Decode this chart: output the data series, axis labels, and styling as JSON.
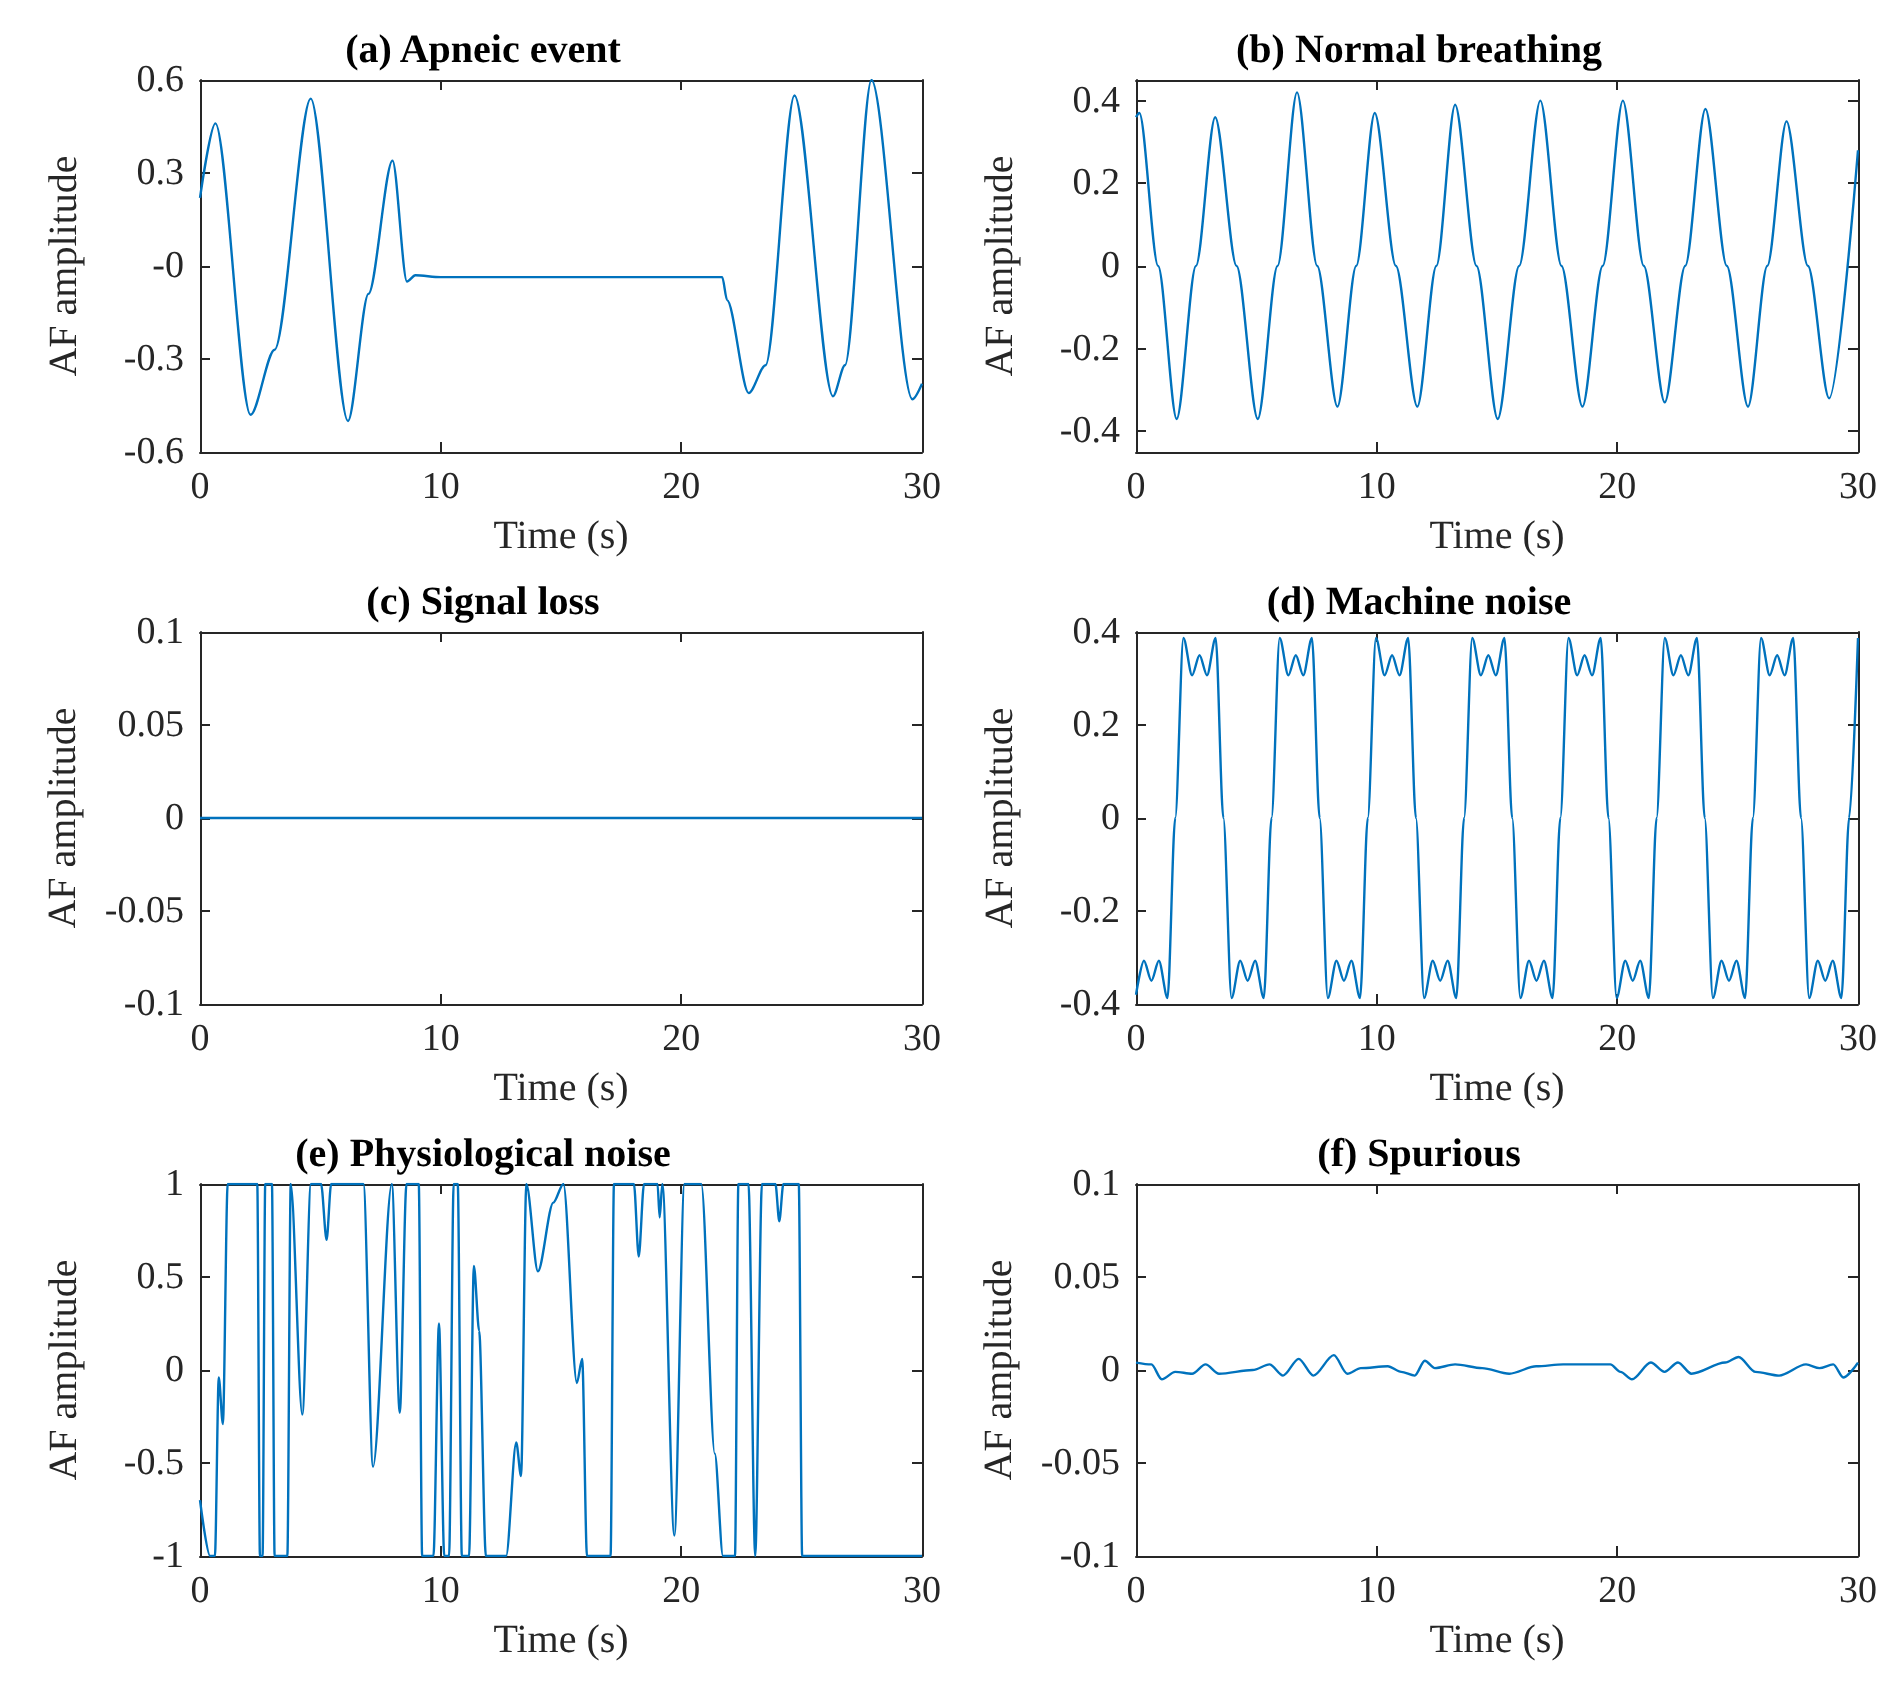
{
  "chart_data": [
    {
      "type": "line",
      "title": "(a) Apneic event",
      "xlabel": "Time (s)",
      "ylabel": "AF amplitude",
      "xlim": [
        0,
        30
      ],
      "xticks": [
        0,
        10,
        20,
        30
      ],
      "ylim": [
        -0.6,
        0.6
      ],
      "yticks": [
        -0.6,
        -0.3,
        {
          "value": 0,
          "label": "-0"
        },
        0.3,
        0.6
      ],
      "series": [
        {
          "color": "#0072bd",
          "x": [
            0,
            0.64,
            2.1,
            3.1,
            4.6,
            6.15,
            7.0,
            8.0,
            8.6,
            8.95,
            10,
            15,
            20,
            21.7,
            21.9,
            22.8,
            23.5,
            24.7,
            26.3,
            26.8,
            27.9,
            29.6,
            30
          ],
          "values": [
            0.22,
            0.46,
            -0.48,
            -0.27,
            0.54,
            -0.5,
            -0.09,
            0.34,
            -0.05,
            -0.03,
            -0.036,
            -0.036,
            -0.036,
            -0.036,
            -0.11,
            -0.41,
            -0.32,
            0.55,
            -0.42,
            -0.32,
            0.6,
            -0.43,
            -0.38
          ]
        }
      ]
    },
    {
      "type": "line",
      "title": "(b) Normal breathing",
      "xlabel": "Time (s)",
      "ylabel": "AF amplitude",
      "xlim": [
        0,
        30
      ],
      "xticks": [
        0,
        10,
        20,
        30
      ],
      "ylim": [
        -0.45,
        0.45
      ],
      "yticks": [
        -0.4,
        -0.2,
        0,
        0.2,
        0.4
      ],
      "series": [
        {
          "color": "#0072bd",
          "x": [
            0,
            0.14,
            0.92,
            1.69,
            2.49,
            3.29,
            4.18,
            5.06,
            5.88,
            6.69,
            7.53,
            8.37,
            9.15,
            9.92,
            10.8,
            11.69,
            12.48,
            13.26,
            14.15,
            15.03,
            15.92,
            16.8,
            17.68,
            18.55,
            19.39,
            20.23,
            21.1,
            21.97,
            22.82,
            23.66,
            24.55,
            25.43,
            26.23,
            27.03,
            27.92,
            28.8,
            30
          ],
          "values": [
            0.36,
            0.37,
            0,
            -0.37,
            0,
            0.36,
            0,
            -0.37,
            0,
            0.42,
            0,
            -0.34,
            0,
            0.37,
            0,
            -0.34,
            0,
            0.39,
            0,
            -0.37,
            0,
            0.4,
            0,
            -0.34,
            0,
            0.4,
            0,
            -0.33,
            0,
            0.38,
            0,
            -0.34,
            0,
            0.35,
            0,
            -0.32,
            0.28
          ]
        }
      ]
    },
    {
      "type": "line",
      "title": "(c) Signal loss",
      "xlabel": "Time (s)",
      "ylabel": "AF amplitude",
      "xlim": [
        0,
        30
      ],
      "xticks": [
        0,
        10,
        20,
        30
      ],
      "ylim": [
        -0.1,
        0.1
      ],
      "yticks": [
        -0.1,
        -0.05,
        0,
        0.05,
        0.1
      ],
      "series": [
        {
          "color": "#0072bd",
          "x": [
            0,
            30
          ],
          "values": [
            0,
            0
          ]
        }
      ]
    },
    {
      "type": "line",
      "title": "(d) Machine noise",
      "xlabel": "Time (s)",
      "ylabel": "AF amplitude",
      "xlim": [
        0,
        30
      ],
      "xticks": [
        0,
        10,
        20,
        30
      ],
      "ylim": [
        -0.4,
        0.4
      ],
      "yticks": [
        -0.4,
        -0.2,
        0,
        0.2,
        0.4
      ],
      "series": [
        {
          "color": "#0072bd",
          "x": [
            0,
            0.33,
            0.64,
            0.95,
            1.31,
            1.63,
            1.97,
            2.33,
            2.64,
            2.95,
            3.31,
            3.63,
            3.97,
            4.33,
            4.64,
            4.95,
            5.31,
            5.63,
            5.97,
            6.33,
            6.64,
            6.95,
            7.31,
            7.63,
            7.97,
            8.33,
            8.64,
            8.95,
            9.31,
            9.63,
            9.97,
            10.33,
            10.64,
            10.95,
            11.31,
            11.63,
            11.97,
            12.33,
            12.64,
            12.95,
            13.31,
            13.63,
            13.97,
            14.33,
            14.64,
            14.95,
            15.31,
            15.63,
            15.97,
            16.33,
            16.64,
            16.95,
            17.31,
            17.63,
            17.97,
            18.33,
            18.64,
            18.95,
            19.31,
            19.63,
            19.97,
            20.33,
            20.64,
            20.95,
            21.31,
            21.63,
            21.97,
            22.33,
            22.64,
            22.95,
            23.31,
            23.63,
            23.97,
            24.33,
            24.64,
            24.95,
            25.31,
            25.63,
            25.97,
            26.33,
            26.64,
            26.95,
            27.31,
            27.63,
            27.97,
            28.33,
            28.64,
            28.95,
            29.31,
            29.63,
            30
          ],
          "values": [
            -0.38,
            -0.307,
            -0.35,
            -0.307,
            -0.387,
            0,
            0.387,
            0.307,
            0.35,
            0.307,
            0.387,
            0,
            -0.387,
            -0.307,
            -0.35,
            -0.307,
            -0.387,
            0,
            0.387,
            0.307,
            0.35,
            0.307,
            0.387,
            0,
            -0.387,
            -0.307,
            -0.35,
            -0.307,
            -0.387,
            0,
            0.387,
            0.307,
            0.35,
            0.307,
            0.387,
            0,
            -0.387,
            -0.307,
            -0.35,
            -0.307,
            -0.387,
            0,
            0.387,
            0.307,
            0.35,
            0.307,
            0.387,
            0,
            -0.387,
            -0.307,
            -0.35,
            -0.307,
            -0.387,
            0,
            0.387,
            0.307,
            0.35,
            0.307,
            0.387,
            0,
            -0.387,
            -0.307,
            -0.35,
            -0.307,
            -0.387,
            0,
            0.387,
            0.307,
            0.35,
            0.307,
            0.387,
            0,
            -0.387,
            -0.307,
            -0.35,
            -0.307,
            -0.387,
            0,
            0.387,
            0.307,
            0.35,
            0.307,
            0.387,
            0,
            -0.387,
            -0.307,
            -0.35,
            -0.307,
            -0.387,
            0,
            0.387
          ]
        }
      ]
    },
    {
      "type": "line",
      "title": "(e) Physiological noise",
      "xlabel": "Time (s)",
      "ylabel": "AF amplitude",
      "xlim": [
        0,
        30
      ],
      "xticks": [
        0,
        10,
        20,
        30
      ],
      "ylim": [
        -1,
        1
      ],
      "yticks": [
        -1,
        -0.5,
        0,
        0.5,
        1
      ],
      "series": [
        {
          "color": "#0072bd",
          "x": [
            0,
            0.42,
            0.62,
            0.78,
            0.95,
            1.15,
            1.31,
            2.38,
            2.49,
            2.6,
            2.71,
            2.99,
            3.1,
            3.63,
            3.77,
            4.25,
            4.61,
            5.03,
            5.26,
            5.45,
            6.79,
            7.19,
            7.97,
            8.3,
            8.58,
            9.09,
            9.23,
            9.7,
            9.93,
            10.15,
            10.35,
            10.54,
            10.71,
            10.88,
            11.18,
            11.38,
            11.6,
            11.88,
            12.72,
            13.14,
            13.34,
            13.56,
            14.04,
            14.68,
            15.1,
            15.66,
            15.88,
            16.08,
            17.06,
            17.2,
            18.03,
            18.23,
            18.45,
            19.01,
            19.1,
            19.21,
            19.71,
            20.13,
            20.83,
            21.39,
            21.73,
            22.23,
            22.37,
            22.79,
            23.07,
            23.35,
            23.91,
            24.07,
            24.24,
            24.88,
            25.02,
            30
          ],
          "values": [
            -0.7,
            -1,
            -1,
            -0.04,
            -0.29,
            1,
            1,
            1,
            -1,
            -1,
            1,
            1,
            -1,
            -1,
            1,
            -0.24,
            1,
            1,
            0.7,
            1,
            1,
            -0.52,
            1,
            -0.23,
            1,
            1,
            -1,
            -1,
            0.25,
            -1,
            -1,
            1,
            1,
            -1,
            -1,
            0.56,
            0.21,
            -1,
            -1,
            -0.39,
            -0.57,
            1,
            0.53,
            0.9,
            1,
            -0.07,
            0.06,
            -1,
            -1,
            1,
            1,
            0.61,
            1,
            1,
            0.82,
            1,
            -0.89,
            1,
            1,
            -0.45,
            -1,
            -1,
            1,
            1,
            -1,
            1,
            1,
            0.8,
            1,
            1,
            -1,
            -1
          ]
        }
      ]
    },
    {
      "type": "line",
      "title": "(f) Spurious",
      "xlabel": "Time (s)",
      "ylabel": "AF amplitude",
      "xlim": [
        0,
        30
      ],
      "xticks": [
        0,
        10,
        20,
        30
      ],
      "ylim": [
        -0.1,
        0.1
      ],
      "yticks": [
        -0.1,
        -0.05,
        0,
        0.05,
        0.1
      ],
      "series": [
        {
          "color": "#0072bd",
          "x": [
            0,
            0.64,
            1.07,
            1.63,
            2.33,
            2.89,
            3.45,
            4.85,
            5.55,
            6.11,
            6.76,
            7.37,
            8.22,
            8.78,
            9.34,
            10.46,
            11.02,
            11.58,
            12.0,
            12.42,
            13.26,
            14.38,
            15.51,
            16.63,
            17.75,
            18.87,
            19.71,
            20.13,
            20.61,
            21.39,
            21.96,
            22.52,
            23.08,
            24.48,
            25.04,
            25.74,
            26.72,
            27.84,
            28.4,
            28.97,
            29.39,
            30
          ],
          "values": [
            0.004,
            0.003,
            -0.005,
            -0.001,
            -0.002,
            0.003,
            -0.002,
            0,
            0.003,
            -0.003,
            0.006,
            -0.003,
            0.008,
            -0.002,
            0.001,
            0.002,
            -0.001,
            -0.003,
            0.005,
            0.001,
            0.003,
            0.001,
            -0.002,
            0.002,
            0.003,
            0.003,
            0.003,
            -0.001,
            -0.005,
            0.004,
            -0.001,
            0.004,
            -0.002,
            0.004,
            0.007,
            -0.001,
            -0.003,
            0.003,
            0.001,
            0.003,
            -0.004,
            0.004
          ]
        }
      ]
    }
  ]
}
